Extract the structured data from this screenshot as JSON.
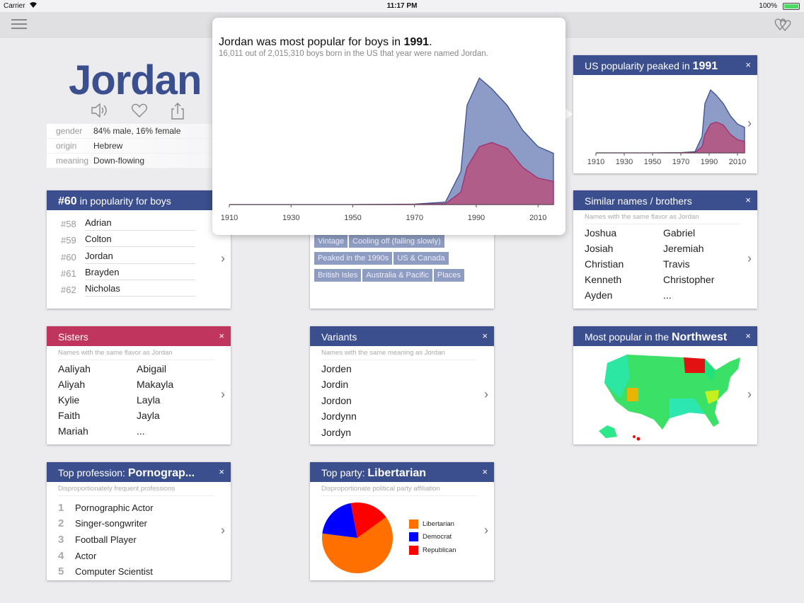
{
  "status": {
    "carrier": "Carrier",
    "time": "11:17 PM",
    "battery": "100%"
  },
  "name": "Jordan",
  "info": [
    {
      "k": "gender",
      "v": "84% male, 16% female"
    },
    {
      "k": "origin",
      "v": "Hebrew"
    },
    {
      "k": "meaning",
      "v": "Down-flowing"
    }
  ],
  "popover": {
    "title_pre": "Jordan was most popular for boys in ",
    "title_year": "1991",
    "title_post": ".",
    "subtitle": "16,011 out of 2,015,310 boys born in the US that year were named Jordan."
  },
  "chart_data": {
    "type": "area",
    "x": [
      1910,
      1930,
      1950,
      1970,
      1980,
      1985,
      1987,
      1991,
      1995,
      2000,
      2005,
      2010,
      2015
    ],
    "series": [
      {
        "name": "",
        "color": "#8d9cc6",
        "values": [
          0,
          0,
          0,
          0.5,
          3,
          40,
          120,
          153,
          140,
          120,
          90,
          70,
          62
        ]
      },
      {
        "name": "",
        "color": "#b05d8a",
        "values": [
          0,
          0,
          0,
          0.3,
          1,
          15,
          45,
          70,
          75,
          68,
          45,
          32,
          28
        ]
      }
    ],
    "xticks": [
      "1910",
      "1930",
      "1950",
      "1970",
      "1990",
      "2010"
    ],
    "ylim": [
      0,
      160
    ]
  },
  "peak": {
    "title": "US popularity peaked in ",
    "year": "1991",
    "close": "×",
    "ticks": [
      "1910",
      "1930",
      "1950",
      "1970",
      "1990",
      "2010"
    ]
  },
  "rank": {
    "title_b": "#60",
    "title": " in popularity for boys",
    "items": [
      {
        "n": "#58",
        "name": "Adrian"
      },
      {
        "n": "#59",
        "name": "Colton"
      },
      {
        "n": "#60",
        "name": "Jordan"
      },
      {
        "n": "#61",
        "name": "Brayden"
      },
      {
        "n": "#62",
        "name": "Nicholas"
      }
    ]
  },
  "tags": [
    "Vintage",
    "Cooling off (falling slowly)",
    "Peaked in the 1990s",
    "US & Canada",
    "British Isles",
    "Australia & Pacific",
    "Places"
  ],
  "similar": {
    "title": "Similar names / brothers",
    "sub": "Names with the same flavor as Jordan",
    "names": [
      "Joshua",
      "Gabriel",
      "Josiah",
      "Jeremiah",
      "Christian",
      "Travis",
      "Kenneth",
      "Christopher",
      "Ayden",
      "..."
    ]
  },
  "sisters": {
    "title": "Sisters",
    "sub": "Names with the same flavor as Jordan",
    "names": [
      "Aaliyah",
      "Abigail",
      "Aliyah",
      "Makayla",
      "Kylie",
      "Layla",
      "Faith",
      "Jayla",
      "Mariah",
      "..."
    ]
  },
  "variants": {
    "title": "Variants",
    "sub": "Names with the same meaning as Jordan",
    "names": [
      "Jorden",
      "Jordin",
      "Jordon",
      "Jordynn",
      "Jordyn"
    ]
  },
  "region": {
    "title": "Most popular in the ",
    "bold": "Northwest"
  },
  "profession": {
    "title": "Top profession: ",
    "bold": "Pornograp...",
    "sub": "Disproportionately frequent professions",
    "items": [
      {
        "n": "1",
        "name": "Pornographic Actor"
      },
      {
        "n": "2",
        "name": "Singer-songwriter"
      },
      {
        "n": "3",
        "name": "Football Player"
      },
      {
        "n": "4",
        "name": "Actor"
      },
      {
        "n": "5",
        "name": "Computer Scientist"
      }
    ]
  },
  "party": {
    "title": "Top party: ",
    "bold": "Libertarian",
    "sub": "Disproportionate political party affiliation",
    "legend": [
      {
        "name": "Libertarian",
        "color": "#ff7000"
      },
      {
        "name": "Democrat",
        "color": "#0000ff"
      },
      {
        "name": "Republican",
        "color": "#ff0000"
      }
    ],
    "slices": [
      62,
      20,
      18
    ]
  },
  "chev": "›",
  "close": "×"
}
